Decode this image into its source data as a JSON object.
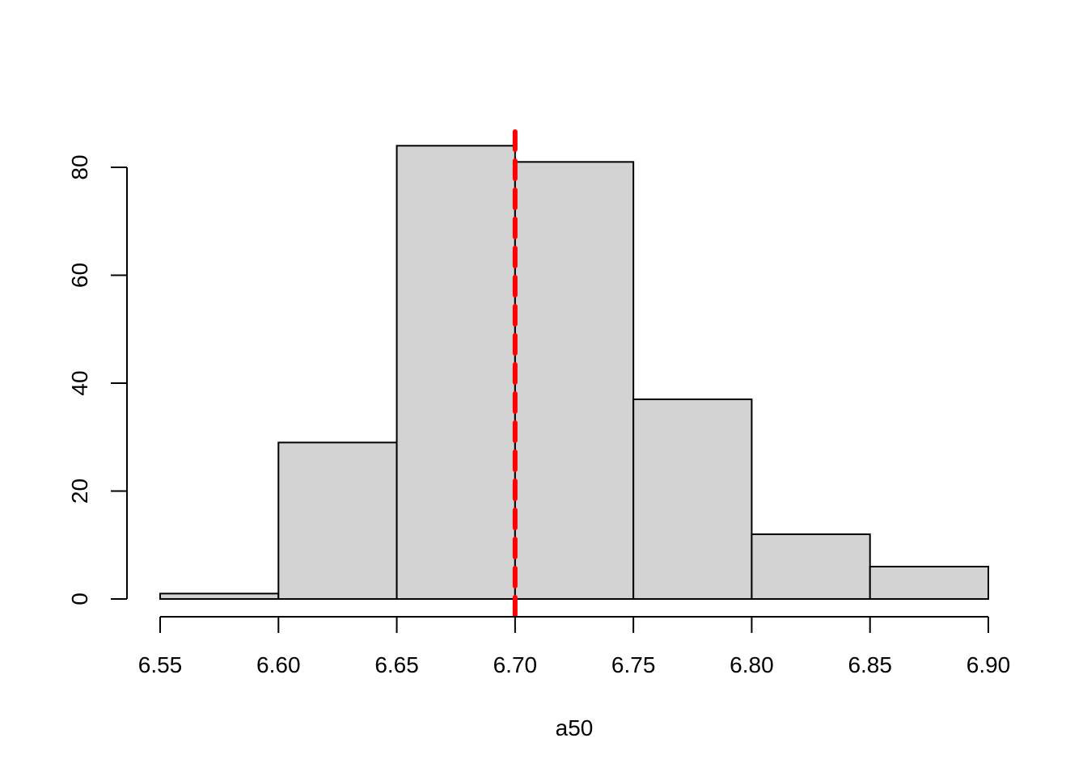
{
  "chart_data": {
    "type": "bar",
    "subtype": "histogram",
    "title": "",
    "xlabel": "a50",
    "ylabel": "",
    "bins": [
      {
        "start": 6.55,
        "end": 6.6,
        "count": 1
      },
      {
        "start": 6.6,
        "end": 6.65,
        "count": 29
      },
      {
        "start": 6.65,
        "end": 6.7,
        "count": 84
      },
      {
        "start": 6.7,
        "end": 6.75,
        "count": 81
      },
      {
        "start": 6.75,
        "end": 6.8,
        "count": 37
      },
      {
        "start": 6.8,
        "end": 6.85,
        "count": 12
      },
      {
        "start": 6.85,
        "end": 6.9,
        "count": 6
      }
    ],
    "xlim": [
      6.55,
      6.9
    ],
    "ylim": [
      0,
      80
    ],
    "x_ticks": [
      "6.55",
      "6.60",
      "6.65",
      "6.70",
      "6.75",
      "6.80",
      "6.85",
      "6.90"
    ],
    "y_ticks": [
      "0",
      "20",
      "40",
      "60",
      "80"
    ],
    "reference_line": {
      "x": 6.7,
      "style": "dashed",
      "color": "#ff0000"
    },
    "bar_fill": "#d3d3d3",
    "bar_stroke": "#000000",
    "grid": false,
    "legend": "none"
  }
}
